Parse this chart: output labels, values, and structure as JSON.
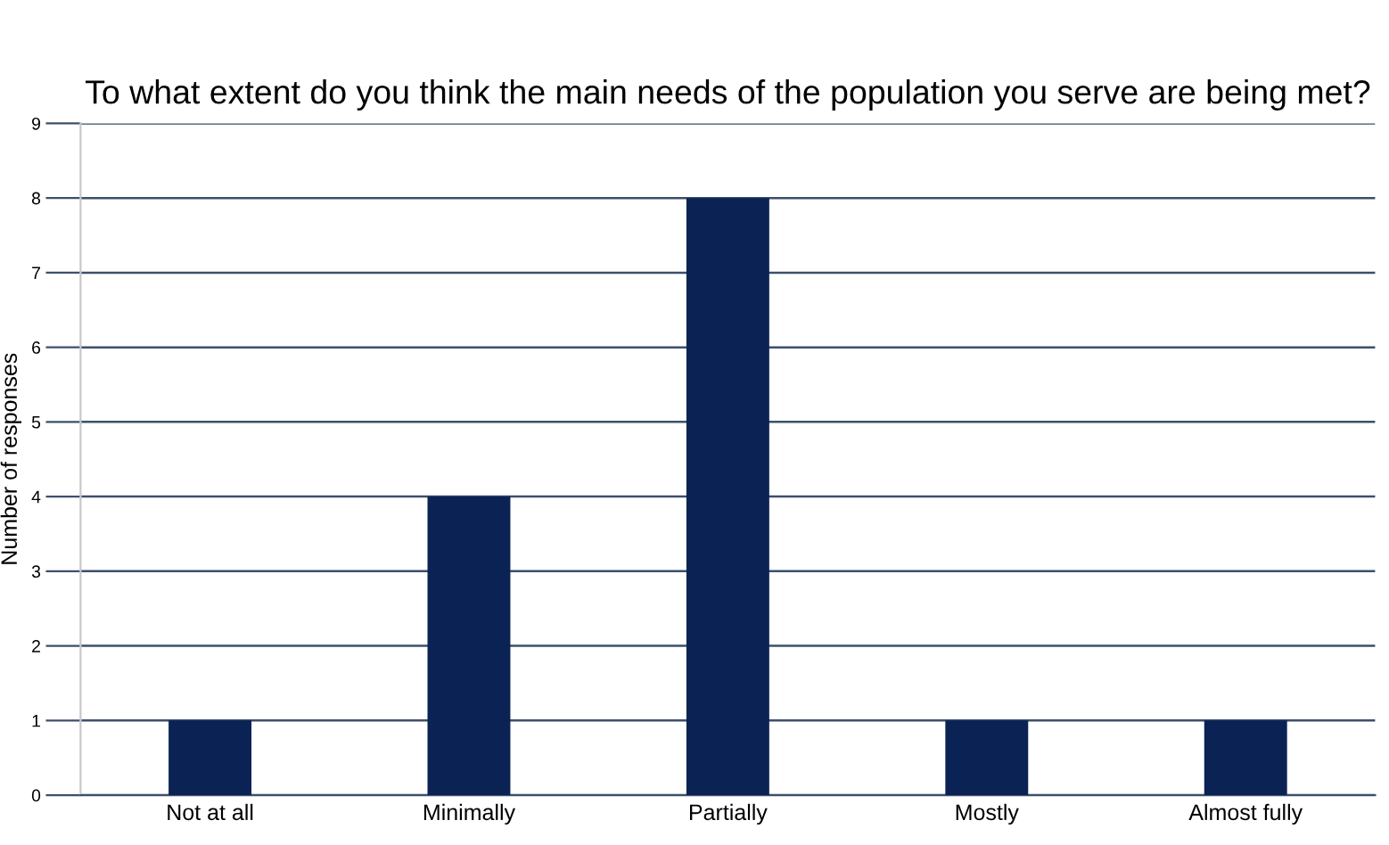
{
  "chart_data": {
    "type": "bar",
    "title": "To what extent do you think the main needs of the population you serve are being met?",
    "ylabel": "Number of responses",
    "categories": [
      "Not at all",
      "Minimally",
      "Partially",
      "Mostly",
      "Almost fully"
    ],
    "values": [
      1,
      4,
      8,
      1,
      1
    ],
    "color": "#0b2354",
    "ylim": [
      0,
      9
    ],
    "yticks": [
      0,
      1,
      2,
      3,
      4,
      5,
      6,
      7,
      8,
      9
    ],
    "grid": "y",
    "legend": false
  }
}
